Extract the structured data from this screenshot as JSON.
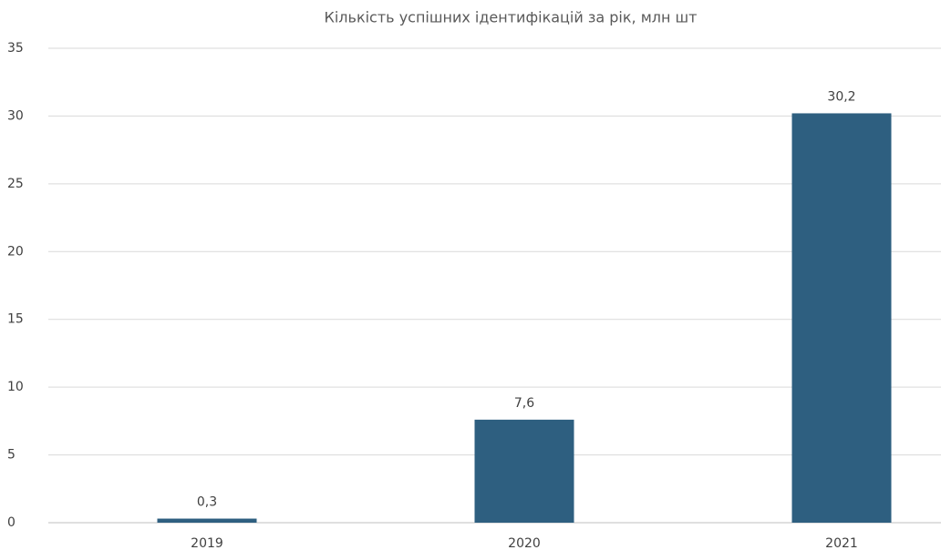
{
  "chart_data": {
    "type": "bar",
    "title": "Кількість успішних ідентифікацій за рік, млн шт",
    "categories": [
      "2019",
      "2020",
      "2021"
    ],
    "values": [
      0.3,
      7.6,
      30.2
    ],
    "value_labels": [
      "0,3",
      "7,6",
      "30,2"
    ],
    "color": "#2e5f80",
    "ylim": [
      0,
      35
    ],
    "yticks": [
      0,
      5,
      10,
      15,
      20,
      25,
      30,
      35
    ],
    "grid": true
  }
}
